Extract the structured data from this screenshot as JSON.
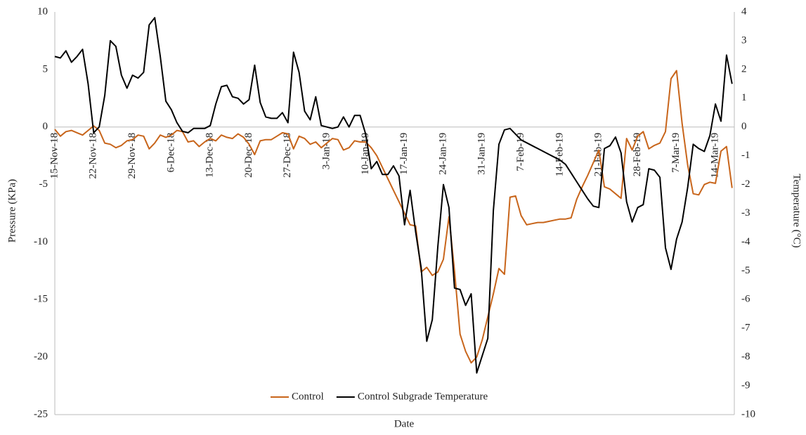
{
  "chart_data": {
    "type": "line",
    "x_label": "Date",
    "y_label": "Pressure (KPa)",
    "y2_label": "Temperature (°C)",
    "categories": [
      "15-Nov-18",
      null,
      null,
      null,
      null,
      null,
      null,
      "22-Nov-18",
      null,
      null,
      null,
      null,
      null,
      null,
      "29-Nov-18",
      null,
      null,
      null,
      null,
      null,
      null,
      "6-Dec-18",
      null,
      null,
      null,
      null,
      null,
      null,
      "13-Dec-18",
      null,
      null,
      null,
      null,
      null,
      null,
      "20-Dec-18",
      null,
      null,
      null,
      null,
      null,
      null,
      "27-Dec-18",
      null,
      null,
      null,
      null,
      null,
      null,
      "3-Jan-19",
      null,
      null,
      null,
      null,
      null,
      null,
      "10-Jan-19",
      null,
      null,
      null,
      null,
      null,
      null,
      "17-Jan-19",
      null,
      null,
      null,
      null,
      null,
      null,
      "24-Jan-19",
      null,
      null,
      null,
      null,
      null,
      null,
      "31-Jan-19",
      null,
      null,
      null,
      null,
      null,
      null,
      "7-Feb-19",
      null,
      null,
      null,
      null,
      null,
      null,
      "14-Feb-19",
      null,
      null,
      null,
      null,
      null,
      null,
      "21-Feb-19",
      null,
      null,
      null,
      null,
      null,
      null,
      "28-Feb-19",
      null,
      null,
      null,
      null,
      null,
      null,
      "7-Mar-19",
      null,
      null,
      null,
      null,
      null,
      null,
      "14-Mar-19",
      null,
      null,
      null
    ],
    "series": [
      {
        "name": "Control",
        "color": "#c8651b",
        "axis": "y",
        "values": [
          -0.2,
          -0.8,
          -0.4,
          -0.3,
          -0.5,
          -0.7,
          -0.3,
          0.1,
          -0.3,
          -1.4,
          -1.5,
          -1.8,
          -1.6,
          -1.2,
          -1.1,
          -0.7,
          -0.8,
          -1.9,
          -1.4,
          -0.7,
          -0.9,
          -0.7,
          -0.3,
          -0.4,
          -1.3,
          -1.2,
          -1.7,
          -1.3,
          -1.0,
          -1.2,
          -0.7,
          -0.9,
          -1.0,
          -0.6,
          -0.9,
          -1.5,
          -2.4,
          -1.2,
          -1.1,
          -1.1,
          -0.8,
          -0.5,
          -0.6,
          -1.9,
          -0.8,
          -1.0,
          -1.5,
          -1.3,
          -1.8,
          -1.4,
          -1.0,
          -1.1,
          -2.0,
          -1.8,
          -1.2,
          -1.3,
          -1.3,
          -1.8,
          -2.5,
          -3.5,
          -4.5,
          -5.5,
          -6.5,
          -7.5,
          -8.5,
          -8.6,
          -12.6,
          -12.2,
          -12.9,
          -12.6,
          -11.5,
          -7.8,
          -12.5,
          -18,
          -19.5,
          -20.5,
          -20,
          -18.5,
          -16.5,
          -14.5,
          -12.3,
          -12.8,
          -6.1,
          -6.0,
          -7.7,
          -8.5,
          -8.4,
          -8.3,
          -8.3,
          -8.2,
          -8.1,
          -8.0,
          -8.0,
          -7.9,
          -6.3,
          -5.2,
          -4.2,
          -3.1,
          -2.0,
          -5.2,
          -5.4,
          -5.8,
          -6.2,
          -1.0,
          -2.0,
          -0.8,
          -0.4,
          -1.9,
          -1.6,
          -1.4,
          -0.4,
          4.2,
          4.9,
          0.3,
          -3.3,
          -5.8,
          -5.9,
          -5.0,
          -4.8,
          -4.9,
          -2.1,
          -1.7,
          -5.3
        ]
      },
      {
        "name": "Control Subgrade Temperature",
        "color": "#000000",
        "axis": "y2",
        "values": [
          2.45,
          2.4,
          2.65,
          2.25,
          2.45,
          2.7,
          1.5,
          -0.2,
          0.0,
          1.1,
          3.0,
          2.8,
          1.8,
          1.35,
          1.8,
          1.7,
          1.9,
          3.55,
          3.8,
          2.45,
          0.9,
          0.6,
          0.15,
          -0.15,
          -0.2,
          -0.05,
          -0.05,
          -0.05,
          0.05,
          0.8,
          1.4,
          1.45,
          1.05,
          1.0,
          0.8,
          0.95,
          2.15,
          0.85,
          0.35,
          0.3,
          0.3,
          0.5,
          0.15,
          2.6,
          1.9,
          0.55,
          0.25,
          1.05,
          0.05,
          0,
          -0.05,
          0,
          0.35,
          0,
          0.4,
          0.4,
          -0.25,
          -1.45,
          -1.2,
          -1.65,
          -1.65,
          -1.35,
          -1.7,
          -3.4,
          -2.2,
          -3.65,
          -4.9,
          -7.45,
          -6.7,
          -4.15,
          -2.0,
          -2.8,
          -5.6,
          -5.65,
          -6.2,
          -5.8,
          -8.55,
          -7.95,
          -7.35,
          -2.9,
          -0.6,
          -0.1,
          -0.05,
          -0.25,
          -0.45,
          -0.55,
          -0.65,
          -0.75,
          -0.85,
          -0.95,
          -1.05,
          -1.15,
          -1.3,
          -1.6,
          -1.9,
          -2.2,
          -2.5,
          -2.75,
          -2.8,
          -0.75,
          -0.65,
          -0.35,
          -0.9,
          -2.6,
          -3.3,
          -2.8,
          -2.7,
          -1.45,
          -1.5,
          -1.75,
          -4.2,
          -4.95,
          -3.9,
          -3.3,
          -2.1,
          -0.6,
          -0.75,
          -0.85,
          -0.3,
          0.8,
          0.2,
          2.5,
          1.5
        ]
      }
    ],
    "ylim": [
      -25,
      10
    ],
    "yticks": [
      -25,
      -20,
      -15,
      -10,
      -5,
      0,
      5,
      10
    ],
    "y2lim": [
      -10,
      4
    ],
    "y2ticks": [
      -10,
      -9,
      -8,
      -7,
      -6,
      -5,
      -4,
      -3,
      -2,
      -1,
      0,
      1,
      2,
      3,
      4
    ],
    "legend": "bottom"
  }
}
